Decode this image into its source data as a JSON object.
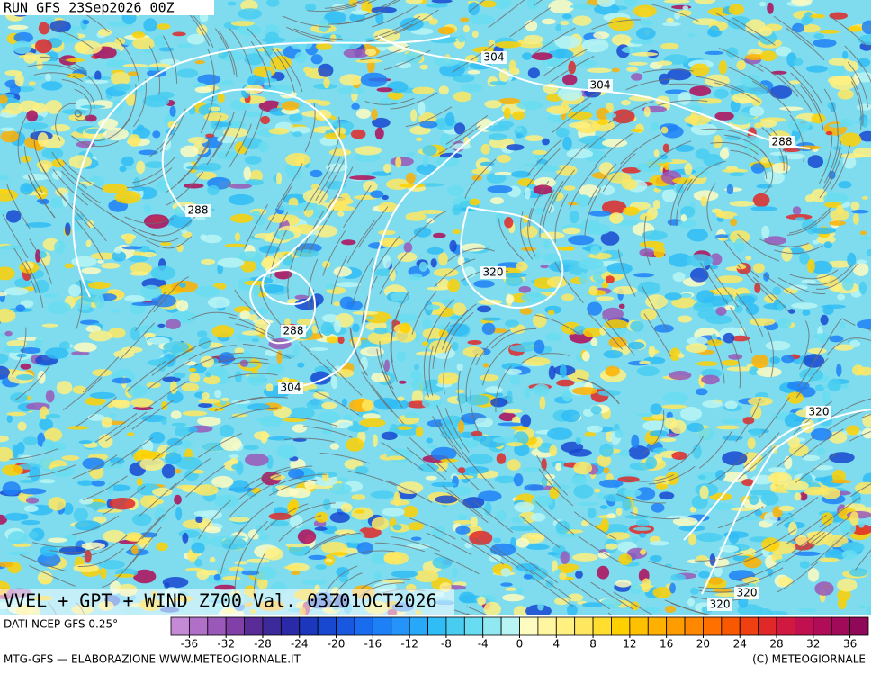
{
  "header": {
    "run": "RUN GFS 23Sep2026 00Z",
    "title": "VVEL + GPT + WIND Z700 Val. 03Z01OCT2026"
  },
  "map": {
    "contour_labels": [
      288,
      304,
      304,
      288,
      320,
      288,
      304,
      320,
      320,
      320
    ]
  },
  "legend": {
    "source": "DATI NCEP GFS 0.25°",
    "lim": [
      -38,
      38
    ],
    "ticks": [
      -36,
      -32,
      -28,
      -24,
      -20,
      -16,
      -12,
      -8,
      -4,
      0,
      4,
      8,
      12,
      16,
      20,
      24,
      28,
      32,
      36
    ],
    "colors": [
      "#c58ad6",
      "#b070c8",
      "#9a58b8",
      "#8040a8",
      "#5a2c98",
      "#3c2a9a",
      "#2a2aa8",
      "#1c36bc",
      "#1848d0",
      "#1858e0",
      "#1a6cee",
      "#1e80f6",
      "#2494fa",
      "#28a8f8",
      "#30bcf4",
      "#48ccf0",
      "#68dcf0",
      "#90e8f0",
      "#b8f4f4",
      "#fffcc0",
      "#fff7a0",
      "#fff080",
      "#ffe860",
      "#ffde30",
      "#ffd000",
      "#ffc000",
      "#ffb000",
      "#ff9c00",
      "#ff8800",
      "#ff7000",
      "#f85800",
      "#ee4010",
      "#e02828",
      "#d01840",
      "#c01050",
      "#b00c58",
      "#a00a58",
      "#900858"
    ]
  },
  "footer": {
    "left": "MTG-GFS — ELABORAZIONE WWW.METEOGIORNALE.IT",
    "right": "(C) METEOGIORNALE"
  }
}
